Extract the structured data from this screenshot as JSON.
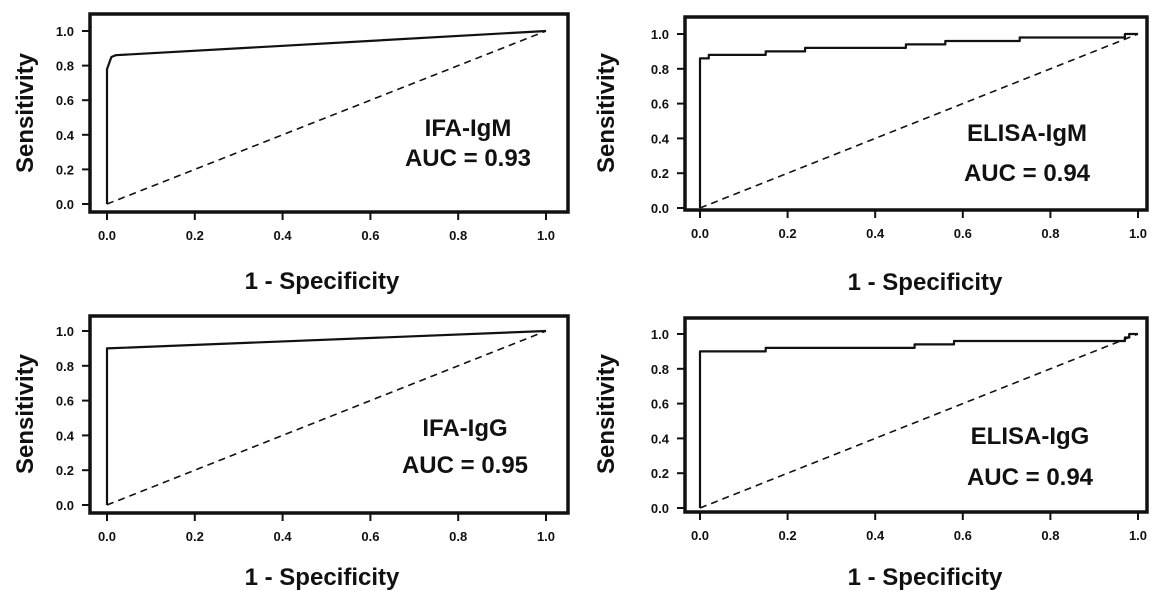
{
  "chart_data": [
    {
      "type": "line",
      "xlabel": "1 - Specificity",
      "ylabel": "Sensitivity",
      "xlim": [
        0,
        1
      ],
      "ylim": [
        0,
        1
      ],
      "xticks": [
        "0.0",
        "0.2",
        "0.4",
        "0.6",
        "0.8",
        "1.0"
      ],
      "yticks": [
        "0.0",
        "0.2",
        "0.4",
        "0.6",
        "0.8",
        "1.0"
      ],
      "annotation": [
        "IFA-IgM",
        "AUC = 0.93"
      ],
      "grid": false,
      "series": [
        {
          "style": "solid",
          "points": [
            [
              0,
              0
            ],
            [
              0,
              0.78
            ],
            [
              0.01,
              0.85
            ],
            [
              0.02,
              0.86
            ],
            [
              1.0,
              1.0
            ]
          ]
        },
        {
          "style": "dashed",
          "points": [
            [
              0,
              0
            ],
            [
              1,
              1
            ]
          ]
        }
      ]
    },
    {
      "type": "line",
      "xlabel": "1 - Specificity",
      "ylabel": "Sensitivity",
      "xlim": [
        0,
        1
      ],
      "ylim": [
        0,
        1
      ],
      "xticks": [
        "0.0",
        "0.2",
        "0.4",
        "0.6",
        "0.8",
        "1.0"
      ],
      "yticks": [
        "0.0",
        "0.2",
        "0.4",
        "0.6",
        "0.8",
        "1.0"
      ],
      "annotation": [
        "ELISA-IgM",
        "AUC = 0.94"
      ],
      "grid": false,
      "series": [
        {
          "style": "solid",
          "points": [
            [
              0,
              0
            ],
            [
              0,
              0.86
            ],
            [
              0.02,
              0.86
            ],
            [
              0.02,
              0.88
            ],
            [
              0.15,
              0.88
            ],
            [
              0.15,
              0.9
            ],
            [
              0.24,
              0.9
            ],
            [
              0.24,
              0.92
            ],
            [
              0.47,
              0.92
            ],
            [
              0.47,
              0.94
            ],
            [
              0.56,
              0.94
            ],
            [
              0.56,
              0.96
            ],
            [
              0.73,
              0.96
            ],
            [
              0.73,
              0.98
            ],
            [
              0.97,
              0.98
            ],
            [
              0.97,
              1.0
            ],
            [
              1.0,
              1.0
            ]
          ]
        },
        {
          "style": "dashed",
          "points": [
            [
              0,
              0
            ],
            [
              1,
              1
            ]
          ]
        }
      ]
    },
    {
      "type": "line",
      "xlabel": "1 - Specificity",
      "ylabel": "Sensitivity",
      "xlim": [
        0,
        1
      ],
      "ylim": [
        0,
        1
      ],
      "xticks": [
        "0.0",
        "0.2",
        "0.4",
        "0.6",
        "0.8",
        "1.0"
      ],
      "yticks": [
        "0.0",
        "0.2",
        "0.4",
        "0.6",
        "0.8",
        "1.0"
      ],
      "annotation": [
        "IFA-IgG",
        "AUC = 0.95"
      ],
      "grid": false,
      "series": [
        {
          "style": "solid",
          "points": [
            [
              0,
              0
            ],
            [
              0,
              0.9
            ],
            [
              1.0,
              1.0
            ]
          ]
        },
        {
          "style": "dashed",
          "points": [
            [
              0,
              0
            ],
            [
              1,
              1
            ]
          ]
        }
      ]
    },
    {
      "type": "line",
      "xlabel": "1 - Specificity",
      "ylabel": "Sensitivity",
      "xlim": [
        0,
        1
      ],
      "ylim": [
        0,
        1
      ],
      "xticks": [
        "0.0",
        "0.2",
        "0.4",
        "0.6",
        "0.8",
        "1.0"
      ],
      "yticks": [
        "0.0",
        "0.2",
        "0.4",
        "0.6",
        "0.8",
        "1.0"
      ],
      "annotation": [
        "ELISA-IgG",
        "AUC = 0.94"
      ],
      "grid": false,
      "series": [
        {
          "style": "solid",
          "points": [
            [
              0,
              0
            ],
            [
              0,
              0.9
            ],
            [
              0.15,
              0.9
            ],
            [
              0.15,
              0.92
            ],
            [
              0.49,
              0.92
            ],
            [
              0.49,
              0.94
            ],
            [
              0.58,
              0.94
            ],
            [
              0.58,
              0.96
            ],
            [
              0.97,
              0.96
            ],
            [
              0.97,
              0.98
            ],
            [
              0.98,
              0.98
            ],
            [
              0.98,
              1.0
            ],
            [
              1.0,
              1.0
            ]
          ]
        },
        {
          "style": "dashed",
          "points": [
            [
              0,
              0
            ],
            [
              1,
              1
            ]
          ]
        }
      ]
    }
  ]
}
